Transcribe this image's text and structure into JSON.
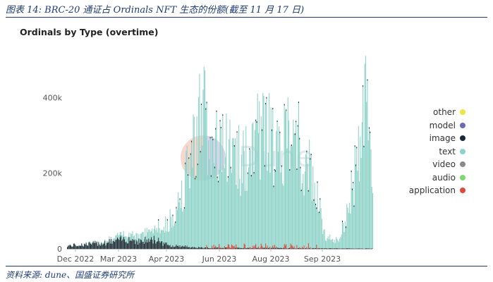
{
  "caption": "图表 14:  BRC-20 通证占 Ordinals NFT 生态的份额(截至 11 月 17 日)",
  "source": "资料来源: dune、国盛证券研究所",
  "watermark": "Dune",
  "chart_data": {
    "type": "bar",
    "title": "Ordinals by Type (overtime)",
    "stacked": true,
    "ylim": [
      0,
      520000
    ],
    "y_ticks": [
      {
        "value": 0,
        "label": "0"
      },
      {
        "value": 200000,
        "label": "200k"
      },
      {
        "value": 400000,
        "label": "400k"
      }
    ],
    "x_range": [
      "2022-12-10",
      "2023-11-17"
    ],
    "x_ticks": [
      {
        "date": "2022-12-01",
        "label": "Dec 2022"
      },
      {
        "date": "2023-03-01",
        "label": "Mar 2023"
      },
      {
        "date": "2023-04-01",
        "label": "Apr 2023"
      },
      {
        "date": "2023-06-01",
        "label": "Jun 2023"
      },
      {
        "date": "2023-08-01",
        "label": "Aug 2023"
      },
      {
        "date": "2023-09-01",
        "label": "Sep 2023"
      }
    ],
    "grid": false,
    "legend_position": "right",
    "series": [
      {
        "name": "other",
        "color": "#f0e442"
      },
      {
        "name": "model",
        "color": "#6b6bb0"
      },
      {
        "name": "image",
        "color": "#1b2a33"
      },
      {
        "name": "text",
        "color": "#8fd3c8"
      },
      {
        "name": "video",
        "color": "#8a8a8a"
      },
      {
        "name": "audio",
        "color": "#7fd86f"
      },
      {
        "name": "application",
        "color": "#e0483a"
      }
    ],
    "text_profile": [
      [
        "2022-12-10",
        0
      ],
      [
        "2023-01-15",
        3000
      ],
      [
        "2023-02-01",
        8000
      ],
      [
        "2023-02-20",
        15000
      ],
      [
        "2023-03-05",
        20000
      ],
      [
        "2023-03-20",
        30000
      ],
      [
        "2023-04-01",
        55000
      ],
      [
        "2023-04-10",
        100000
      ],
      [
        "2023-04-20",
        180000
      ],
      [
        "2023-05-01",
        310000
      ],
      [
        "2023-05-08",
        390000
      ],
      [
        "2023-05-15",
        330000
      ],
      [
        "2023-05-25",
        300000
      ],
      [
        "2023-06-05",
        280000
      ],
      [
        "2023-06-15",
        250000
      ],
      [
        "2023-06-25",
        230000
      ],
      [
        "2023-07-05",
        260000
      ],
      [
        "2023-07-15",
        330000
      ],
      [
        "2023-07-25",
        300000
      ],
      [
        "2023-08-05",
        260000
      ],
      [
        "2023-08-15",
        300000
      ],
      [
        "2023-08-25",
        290000
      ],
      [
        "2023-09-05",
        230000
      ],
      [
        "2023-09-15",
        140000
      ],
      [
        "2023-09-25",
        30000
      ],
      [
        "2023-10-10",
        20000
      ],
      [
        "2023-10-20",
        100000
      ],
      [
        "2023-11-01",
        250000
      ],
      [
        "2023-11-10",
        420000
      ],
      [
        "2023-11-17",
        130000
      ]
    ],
    "image_profile": [
      [
        "2022-12-10",
        8000
      ],
      [
        "2023-01-15",
        15000
      ],
      [
        "2023-02-01",
        20000
      ],
      [
        "2023-02-15",
        28000
      ],
      [
        "2023-03-01",
        20000
      ],
      [
        "2023-03-20",
        25000
      ],
      [
        "2023-04-01",
        10000
      ],
      [
        "2023-05-10",
        3000
      ],
      [
        "2023-11-17",
        1000
      ]
    ]
  }
}
